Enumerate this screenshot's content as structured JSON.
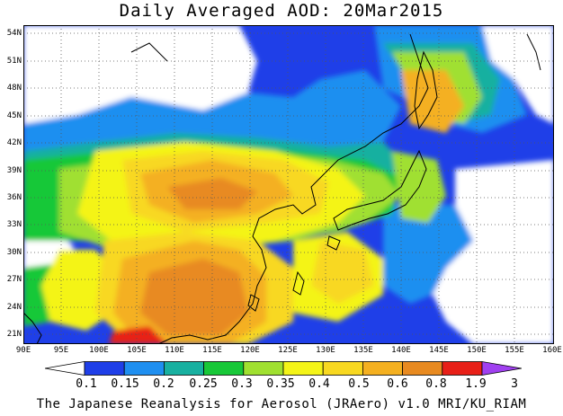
{
  "title": "Daily Averaged AOD: 20Mar2015",
  "footer": "The Japanese Reanalysis for Aerosol (JRAero) v1.0 MRI/KU_RIAM",
  "lat_ticks": [
    "54N",
    "51N",
    "48N",
    "45N",
    "42N",
    "39N",
    "36N",
    "33N",
    "30N",
    "27N",
    "24N",
    "21N"
  ],
  "lon_ticks": [
    "90E",
    "95E",
    "100E",
    "105E",
    "110E",
    "115E",
    "120E",
    "125E",
    "130E",
    "135E",
    "140E",
    "145E",
    "150E",
    "155E",
    "160E"
  ],
  "colorbar": {
    "labels": [
      "0.1",
      "0.15",
      "0.2",
      "0.25",
      "0.3",
      "0.35",
      "0.4",
      "0.5",
      "0.6",
      "0.8",
      "1.9",
      "3"
    ],
    "colors": [
      "#ffffff",
      "#1f3fe8",
      "#1f8ff0",
      "#18b0a0",
      "#18c838",
      "#a0e030",
      "#f4f418",
      "#f8d820",
      "#f4b020",
      "#e88a20",
      "#e82018",
      "#a040f0"
    ]
  },
  "map_legend": {
    "lat_range": [
      20,
      55
    ],
    "lon_range": [
      90,
      160
    ]
  }
}
